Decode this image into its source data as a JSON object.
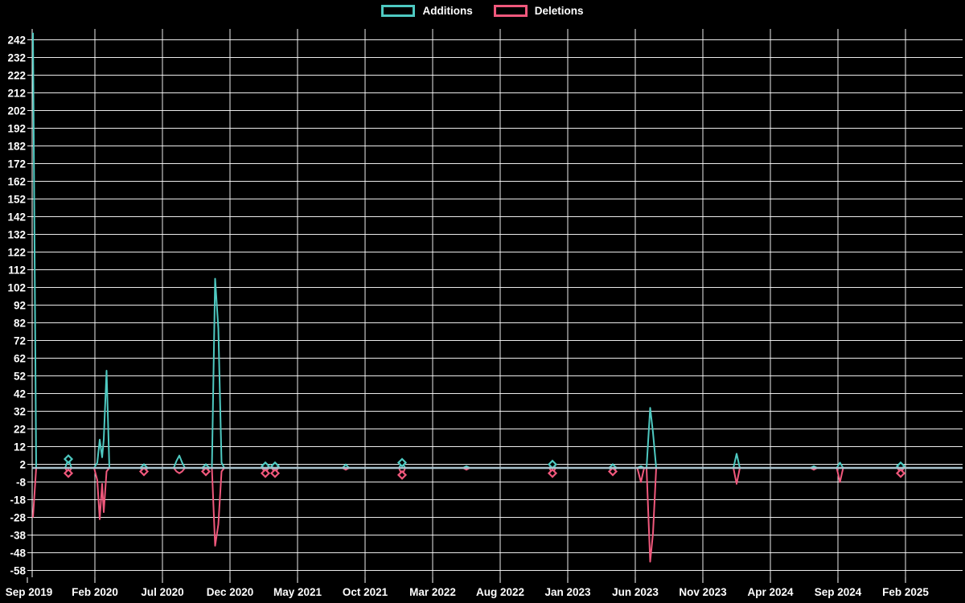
{
  "page": {
    "background": "#000000",
    "text_color": "#ffffff"
  },
  "chart_data": {
    "type": "line",
    "title": "",
    "description": "Weekly additions and deletions frequency chart",
    "legend": [
      {
        "label": "Additions",
        "color": "#4ec9c1"
      },
      {
        "label": "Deletions",
        "color": "#f0587c"
      }
    ],
    "legend_position": "top-center",
    "grid": true,
    "grid_color": "#ffffff",
    "zero_line_color": "#a9c3ce",
    "y_axis": {
      "min": -58,
      "max": 246,
      "tick_step": 10,
      "ticks": [
        242,
        232,
        222,
        212,
        202,
        192,
        182,
        172,
        162,
        152,
        142,
        132,
        122,
        112,
        102,
        92,
        82,
        72,
        62,
        52,
        42,
        32,
        22,
        12,
        2,
        -8,
        -18,
        -28,
        -38,
        -48,
        -58
      ]
    },
    "x_axis": {
      "tick_labels": [
        "Sep 2019",
        "Feb 2020",
        "Jul 2020",
        "Dec 2020",
        "May 2021",
        "Oct 2021",
        "Mar 2022",
        "Aug 2022",
        "Jan 2023",
        "Jun 2023",
        "Nov 2023",
        "Apr 2024",
        "Sep 2024",
        "Feb 2025"
      ],
      "months_per_labeled_tick": 5,
      "note": "weekly data points; months_since_first_label = (x_px - 34) / 16.8"
    },
    "points_format": "[x_px, additions, deletions, has_point_marker]",
    "points": [
      [
        41,
        246,
        -28,
        0
      ],
      [
        45,
        0,
        0,
        0
      ],
      [
        81,
        0,
        0,
        0
      ],
      [
        85,
        5,
        -3,
        1
      ],
      [
        89,
        0,
        0,
        0
      ],
      [
        117,
        0,
        0,
        0
      ],
      [
        121,
        3,
        -7,
        0
      ],
      [
        124,
        16,
        -29,
        0
      ],
      [
        127,
        6,
        -9,
        0
      ],
      [
        129,
        16,
        -25,
        0
      ],
      [
        132.5,
        55,
        -2,
        0
      ],
      [
        136,
        0,
        0,
        0
      ],
      [
        175,
        0,
        0,
        0
      ],
      [
        179,
        0,
        -2,
        1
      ],
      [
        183,
        0,
        0,
        0
      ],
      [
        216,
        0,
        0,
        0
      ],
      [
        219.5,
        4,
        -2,
        0
      ],
      [
        223,
        7,
        -3,
        0
      ],
      [
        226.5,
        3,
        -2,
        0
      ],
      [
        230,
        0,
        0,
        0
      ],
      [
        252,
        0,
        0,
        0
      ],
      [
        256,
        0,
        -2,
        1
      ],
      [
        260,
        0,
        0,
        0
      ],
      [
        263.5,
        0,
        0,
        0
      ],
      [
        267.5,
        107,
        -44,
        0
      ],
      [
        271.5,
        79,
        -32,
        0
      ],
      [
        275.5,
        3,
        -2,
        0
      ],
      [
        279,
        0,
        0,
        0
      ],
      [
        326,
        0,
        0,
        0
      ],
      [
        330,
        1,
        -3,
        1
      ],
      [
        334,
        0,
        0,
        0
      ],
      [
        338,
        0,
        0,
        0
      ],
      [
        342,
        1,
        -3,
        1
      ],
      [
        346,
        0,
        0,
        0
      ],
      [
        426,
        0,
        0,
        0
      ],
      [
        430,
        2,
        -1,
        0
      ],
      [
        434,
        0,
        0,
        0
      ],
      [
        496,
        0,
        0,
        0
      ],
      [
        500,
        3,
        -4,
        1
      ],
      [
        504,
        0,
        0,
        0
      ],
      [
        576,
        0,
        0,
        0
      ],
      [
        580,
        1,
        -1,
        0
      ],
      [
        584,
        0,
        0,
        0
      ],
      [
        683,
        0,
        0,
        0
      ],
      [
        687,
        2,
        -3,
        1
      ],
      [
        691,
        0,
        0,
        0
      ],
      [
        758,
        0,
        0,
        0
      ],
      [
        762,
        0,
        -2,
        1
      ],
      [
        766,
        0,
        0,
        0
      ],
      [
        792.5,
        0,
        0,
        0
      ],
      [
        797,
        1,
        -8,
        0
      ],
      [
        801,
        0,
        0,
        0
      ],
      [
        804,
        0,
        0,
        0
      ],
      [
        808.5,
        34,
        -53,
        0
      ],
      [
        812,
        20,
        -37,
        0
      ],
      [
        816,
        0,
        0,
        0
      ],
      [
        912,
        0,
        0,
        0
      ],
      [
        916,
        8,
        -9,
        0
      ],
      [
        920,
        0,
        0,
        0
      ],
      [
        1008,
        0,
        0,
        0
      ],
      [
        1012,
        1,
        -1,
        0
      ],
      [
        1016,
        0,
        0,
        0
      ],
      [
        1040.5,
        0,
        0,
        0
      ],
      [
        1044.5,
        3,
        -8,
        0
      ],
      [
        1048.5,
        0,
        0,
        0
      ],
      [
        1116,
        0,
        0,
        0
      ],
      [
        1120,
        1,
        -3,
        1
      ],
      [
        1124,
        0,
        0,
        0
      ],
      [
        1192,
        0,
        0,
        0
      ]
    ],
    "notable_events": [
      {
        "date": "Sep 2019",
        "additions": 246,
        "deletions": -28
      },
      {
        "date": "Nov 2019",
        "additions": 5,
        "deletions": -3
      },
      {
        "date": "Feb 2020",
        "additions": 55,
        "deletions": -29
      },
      {
        "date": "May 2020",
        "additions": 0,
        "deletions": -2
      },
      {
        "date": "Aug 2020",
        "additions": 7,
        "deletions": -3
      },
      {
        "date": "Oct 2020",
        "additions": 0,
        "deletions": -2
      },
      {
        "date": "Dec 2020",
        "additions": 107,
        "deletions": -44
      },
      {
        "date": "Feb 2021",
        "additions": 1,
        "deletions": -3
      },
      {
        "date": "Mar 2021",
        "additions": 1,
        "deletions": -3
      },
      {
        "date": "Aug 2021",
        "additions": 2,
        "deletions": -1
      },
      {
        "date": "Dec 2021",
        "additions": 3,
        "deletions": -4
      },
      {
        "date": "May 2022",
        "additions": 1,
        "deletions": -1
      },
      {
        "date": "Dec 2022",
        "additions": 2,
        "deletions": -3
      },
      {
        "date": "Apr 2023",
        "additions": 0,
        "deletions": -2
      },
      {
        "date": "Jun 2023",
        "additions": 1,
        "deletions": -8
      },
      {
        "date": "Jul 2023",
        "additions": 34,
        "deletions": -53
      },
      {
        "date": "Dec 2023",
        "additions": 8,
        "deletions": -9
      },
      {
        "date": "Aug 2024",
        "additions": 1,
        "deletions": -1
      },
      {
        "date": "Sep 2024",
        "additions": 3,
        "deletions": -8
      },
      {
        "date": "Feb 2025",
        "additions": 1,
        "deletions": -3
      }
    ]
  }
}
